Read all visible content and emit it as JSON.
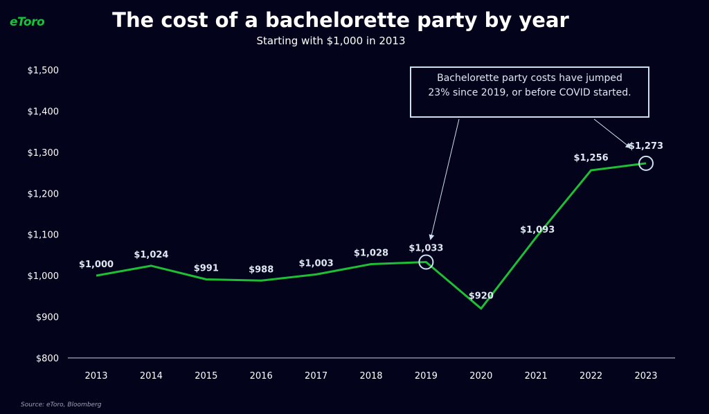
{
  "brand": "eToro",
  "title": "The cost of a bachelorette party by year",
  "subtitle": "Starting with $1,000 in 2013",
  "source": "Source: eToro, Bloomberg",
  "annotation": "Bachelorette party costs have jumped 23% since 2019, or before COVID started.",
  "colors": {
    "background": "#03031c",
    "line": "#1fbf35",
    "brand": "#13c636",
    "callout": "#cfe0ee"
  },
  "chart_data": {
    "type": "line",
    "title": "The cost of a bachelorette party by year",
    "subtitle": "Starting with $1,000 in 2013",
    "categories": [
      "2013",
      "2014",
      "2015",
      "2016",
      "2017",
      "2018",
      "2019",
      "2020",
      "2021",
      "2022",
      "2023"
    ],
    "values": [
      1000,
      1024,
      991,
      988,
      1003,
      1028,
      1033,
      920,
      1093,
      1256,
      1273
    ],
    "value_labels": [
      "$1,000",
      "$1,024",
      "$991",
      "$988",
      "$1,003",
      "$1,028",
      "$1,033",
      "$920",
      "$1,093",
      "$1,256",
      "$1,273"
    ],
    "y_ticks": [
      800,
      900,
      1000,
      1100,
      1200,
      1300,
      1400,
      1500
    ],
    "y_tick_labels": [
      "$800",
      "$900",
      "$1,000",
      "$1,100",
      "$1,200",
      "$1,300",
      "$1,400",
      "$1,500"
    ],
    "ylim": [
      800,
      1500
    ],
    "grid": false,
    "highlighted_points": [
      "2019",
      "2023"
    ],
    "xlabel": "",
    "ylabel": ""
  }
}
